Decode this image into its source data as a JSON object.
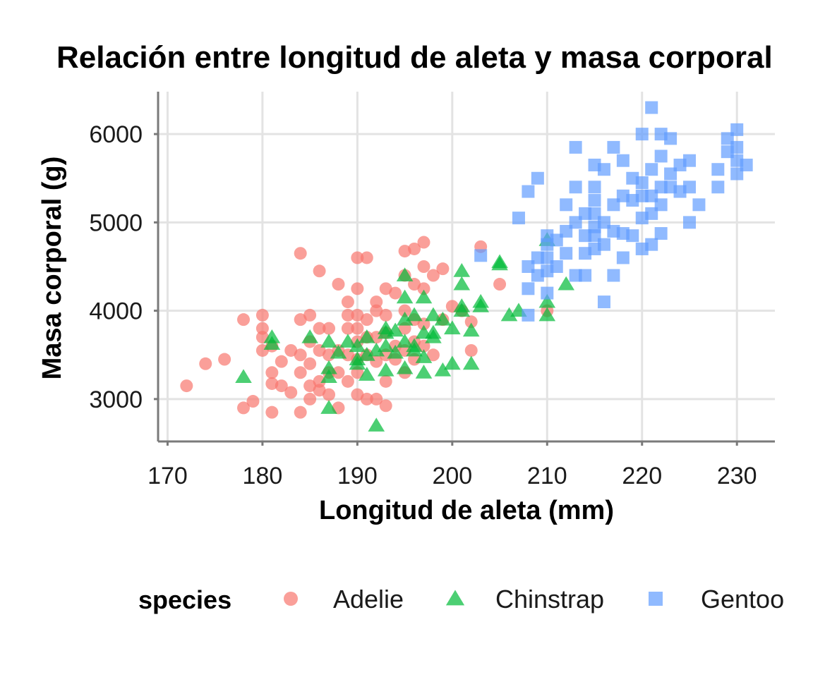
{
  "chart_data": {
    "type": "scatter",
    "title": "Relación entre longitud de aleta y masa corporal",
    "xlabel": "Longitud de aleta (mm)",
    "ylabel": "Masa corporal (g)",
    "xlim": [
      169,
      234
    ],
    "ylim": [
      2520,
      6480
    ],
    "x_ticks": [
      170,
      180,
      190,
      200,
      210,
      220,
      230
    ],
    "y_ticks": [
      3000,
      4000,
      5000,
      6000
    ],
    "grid": true,
    "legend": {
      "title": "species",
      "position": "bottom"
    },
    "series": [
      {
        "name": "Adelie",
        "color": "#F8766D",
        "shape": "circle",
        "points": [
          [
            172,
            3150
          ],
          [
            174,
            3400
          ],
          [
            176,
            3450
          ],
          [
            178,
            3900
          ],
          [
            178,
            2900
          ],
          [
            179,
            2975
          ],
          [
            180,
            3950
          ],
          [
            180,
            3800
          ],
          [
            180,
            3700
          ],
          [
            180,
            3550
          ],
          [
            181,
            3300
          ],
          [
            181,
            3175
          ],
          [
            181,
            2850
          ],
          [
            181,
            3600
          ],
          [
            182,
            3425
          ],
          [
            182,
            3150
          ],
          [
            183,
            3075
          ],
          [
            183,
            3550
          ],
          [
            184,
            3900
          ],
          [
            184,
            4650
          ],
          [
            184,
            3300
          ],
          [
            184,
            3500
          ],
          [
            184,
            2850
          ],
          [
            185,
            3950
          ],
          [
            185,
            3650
          ],
          [
            185,
            3400
          ],
          [
            185,
            3150
          ],
          [
            185,
            3000
          ],
          [
            186,
            3800
          ],
          [
            186,
            3550
          ],
          [
            186,
            3200
          ],
          [
            186,
            4450
          ],
          [
            186,
            3100
          ],
          [
            187,
            3800
          ],
          [
            187,
            3500
          ],
          [
            187,
            3300
          ],
          [
            187,
            3050
          ],
          [
            188,
            3550
          ],
          [
            188,
            3300
          ],
          [
            188,
            4300
          ],
          [
            188,
            2900
          ],
          [
            189,
            3950
          ],
          [
            189,
            3800
          ],
          [
            189,
            3500
          ],
          [
            189,
            3200
          ],
          [
            189,
            4100
          ],
          [
            190,
            4600
          ],
          [
            190,
            4250
          ],
          [
            190,
            3950
          ],
          [
            190,
            3800
          ],
          [
            190,
            3650
          ],
          [
            190,
            3450
          ],
          [
            190,
            3300
          ],
          [
            190,
            3050
          ],
          [
            191,
            4600
          ],
          [
            191,
            3900
          ],
          [
            191,
            3700
          ],
          [
            191,
            3500
          ],
          [
            191,
            3000
          ],
          [
            192,
            4100
          ],
          [
            192,
            4000
          ],
          [
            192,
            3700
          ],
          [
            192,
            3425
          ],
          [
            192,
            3000
          ],
          [
            193,
            4250
          ],
          [
            193,
            3950
          ],
          [
            193,
            3750
          ],
          [
            193,
            3500
          ],
          [
            193,
            3200
          ],
          [
            193,
            2925
          ],
          [
            194,
            4200
          ],
          [
            194,
            3600
          ],
          [
            194,
            3450
          ],
          [
            195,
            4675
          ],
          [
            195,
            4400
          ],
          [
            195,
            4000
          ],
          [
            195,
            3800
          ],
          [
            195,
            3550
          ],
          [
            195,
            3300
          ],
          [
            196,
            4700
          ],
          [
            196,
            4300
          ],
          [
            196,
            3900
          ],
          [
            196,
            3650
          ],
          [
            196,
            3450
          ],
          [
            197,
            4775
          ],
          [
            197,
            4500
          ],
          [
            197,
            4250
          ],
          [
            197,
            3850
          ],
          [
            197,
            3600
          ],
          [
            198,
            4400
          ],
          [
            198,
            3500
          ],
          [
            199,
            4475
          ],
          [
            199,
            3900
          ],
          [
            200,
            4050
          ],
          [
            201,
            4000
          ],
          [
            202,
            3875
          ],
          [
            202,
            3550
          ],
          [
            203,
            4725
          ],
          [
            205,
            4300
          ],
          [
            210,
            4000
          ]
        ]
      },
      {
        "name": "Chinstrap",
        "color": "#00BA38",
        "shape": "triangle",
        "points": [
          [
            178,
            3250
          ],
          [
            181,
            3700
          ],
          [
            181,
            3625
          ],
          [
            185,
            3700
          ],
          [
            187,
            3650
          ],
          [
            187,
            3350
          ],
          [
            187,
            3250
          ],
          [
            187,
            2900
          ],
          [
            188,
            3525
          ],
          [
            189,
            3650
          ],
          [
            190,
            3600
          ],
          [
            190,
            3450
          ],
          [
            190,
            3400
          ],
          [
            191,
            3700
          ],
          [
            191,
            3500
          ],
          [
            191,
            3275
          ],
          [
            192,
            2700
          ],
          [
            192,
            3550
          ],
          [
            193,
            3800
          ],
          [
            193,
            3750
          ],
          [
            193,
            3600
          ],
          [
            193,
            3325
          ],
          [
            194,
            3775
          ],
          [
            194,
            3525
          ],
          [
            195,
            4400
          ],
          [
            195,
            4150
          ],
          [
            195,
            3900
          ],
          [
            195,
            3650
          ],
          [
            195,
            3350
          ],
          [
            196,
            3950
          ],
          [
            196,
            3600
          ],
          [
            196,
            3550
          ],
          [
            197,
            4150
          ],
          [
            197,
            3750
          ],
          [
            197,
            3475
          ],
          [
            197,
            3300
          ],
          [
            198,
            3950
          ],
          [
            198,
            3750
          ],
          [
            198,
            3700
          ],
          [
            199,
            3900
          ],
          [
            199,
            3325
          ],
          [
            200,
            3800
          ],
          [
            200,
            3400
          ],
          [
            201,
            4450
          ],
          [
            201,
            4300
          ],
          [
            201,
            4050
          ],
          [
            201,
            4000
          ],
          [
            202,
            3775
          ],
          [
            202,
            3400
          ],
          [
            203,
            4100
          ],
          [
            203,
            4050
          ],
          [
            205,
            4550
          ],
          [
            205,
            4525
          ],
          [
            206,
            3950
          ],
          [
            207,
            4000
          ],
          [
            210,
            4800
          ],
          [
            210,
            4100
          ],
          [
            210,
            3950
          ],
          [
            212,
            4300
          ]
        ]
      },
      {
        "name": "Gentoo",
        "color": "#619CFF",
        "shape": "square",
        "points": [
          [
            203,
            4625
          ],
          [
            207,
            5050
          ],
          [
            208,
            4500
          ],
          [
            208,
            4250
          ],
          [
            208,
            3950
          ],
          [
            208,
            5350
          ],
          [
            209,
            4600
          ],
          [
            209,
            4400
          ],
          [
            209,
            5500
          ],
          [
            210,
            4750
          ],
          [
            210,
            4600
          ],
          [
            210,
            4450
          ],
          [
            210,
            4200
          ],
          [
            210,
            4850
          ],
          [
            211,
            4800
          ],
          [
            211,
            4500
          ],
          [
            212,
            5200
          ],
          [
            212,
            4900
          ],
          [
            212,
            4650
          ],
          [
            213,
            5850
          ],
          [
            213,
            5400
          ],
          [
            213,
            5000
          ],
          [
            213,
            4400
          ],
          [
            214,
            5100
          ],
          [
            214,
            4850
          ],
          [
            214,
            4650
          ],
          [
            214,
            4400
          ],
          [
            215,
            5650
          ],
          [
            215,
            5400
          ],
          [
            215,
            5250
          ],
          [
            215,
            5100
          ],
          [
            215,
            4950
          ],
          [
            215,
            4850
          ],
          [
            215,
            4700
          ],
          [
            216,
            5600
          ],
          [
            216,
            5000
          ],
          [
            216,
            4750
          ],
          [
            216,
            4100
          ],
          [
            217,
            5850
          ],
          [
            217,
            5200
          ],
          [
            217,
            4900
          ],
          [
            217,
            4400
          ],
          [
            218,
            5700
          ],
          [
            218,
            5300
          ],
          [
            218,
            4600
          ],
          [
            218,
            4875
          ],
          [
            219,
            5500
          ],
          [
            219,
            5250
          ],
          [
            219,
            4850
          ],
          [
            220,
            6000
          ],
          [
            220,
            5450
          ],
          [
            220,
            5300
          ],
          [
            220,
            5050
          ],
          [
            220,
            4700
          ],
          [
            221,
            6300
          ],
          [
            221,
            5600
          ],
          [
            221,
            5300
          ],
          [
            221,
            5100
          ],
          [
            221,
            4750
          ],
          [
            222,
            6000
          ],
          [
            222,
            5750
          ],
          [
            222,
            5400
          ],
          [
            222,
            5200
          ],
          [
            222,
            4875
          ],
          [
            223,
            5950
          ],
          [
            223,
            5550
          ],
          [
            223,
            5400
          ],
          [
            224,
            5650
          ],
          [
            224,
            5350
          ],
          [
            225,
            5700
          ],
          [
            225,
            5400
          ],
          [
            225,
            5000
          ],
          [
            226,
            5200
          ],
          [
            228,
            5600
          ],
          [
            228,
            5400
          ],
          [
            229,
            5950
          ],
          [
            229,
            5800
          ],
          [
            230,
            6050
          ],
          [
            230,
            5850
          ],
          [
            230,
            5700
          ],
          [
            230,
            5550
          ],
          [
            231,
            5650
          ]
        ]
      }
    ]
  }
}
